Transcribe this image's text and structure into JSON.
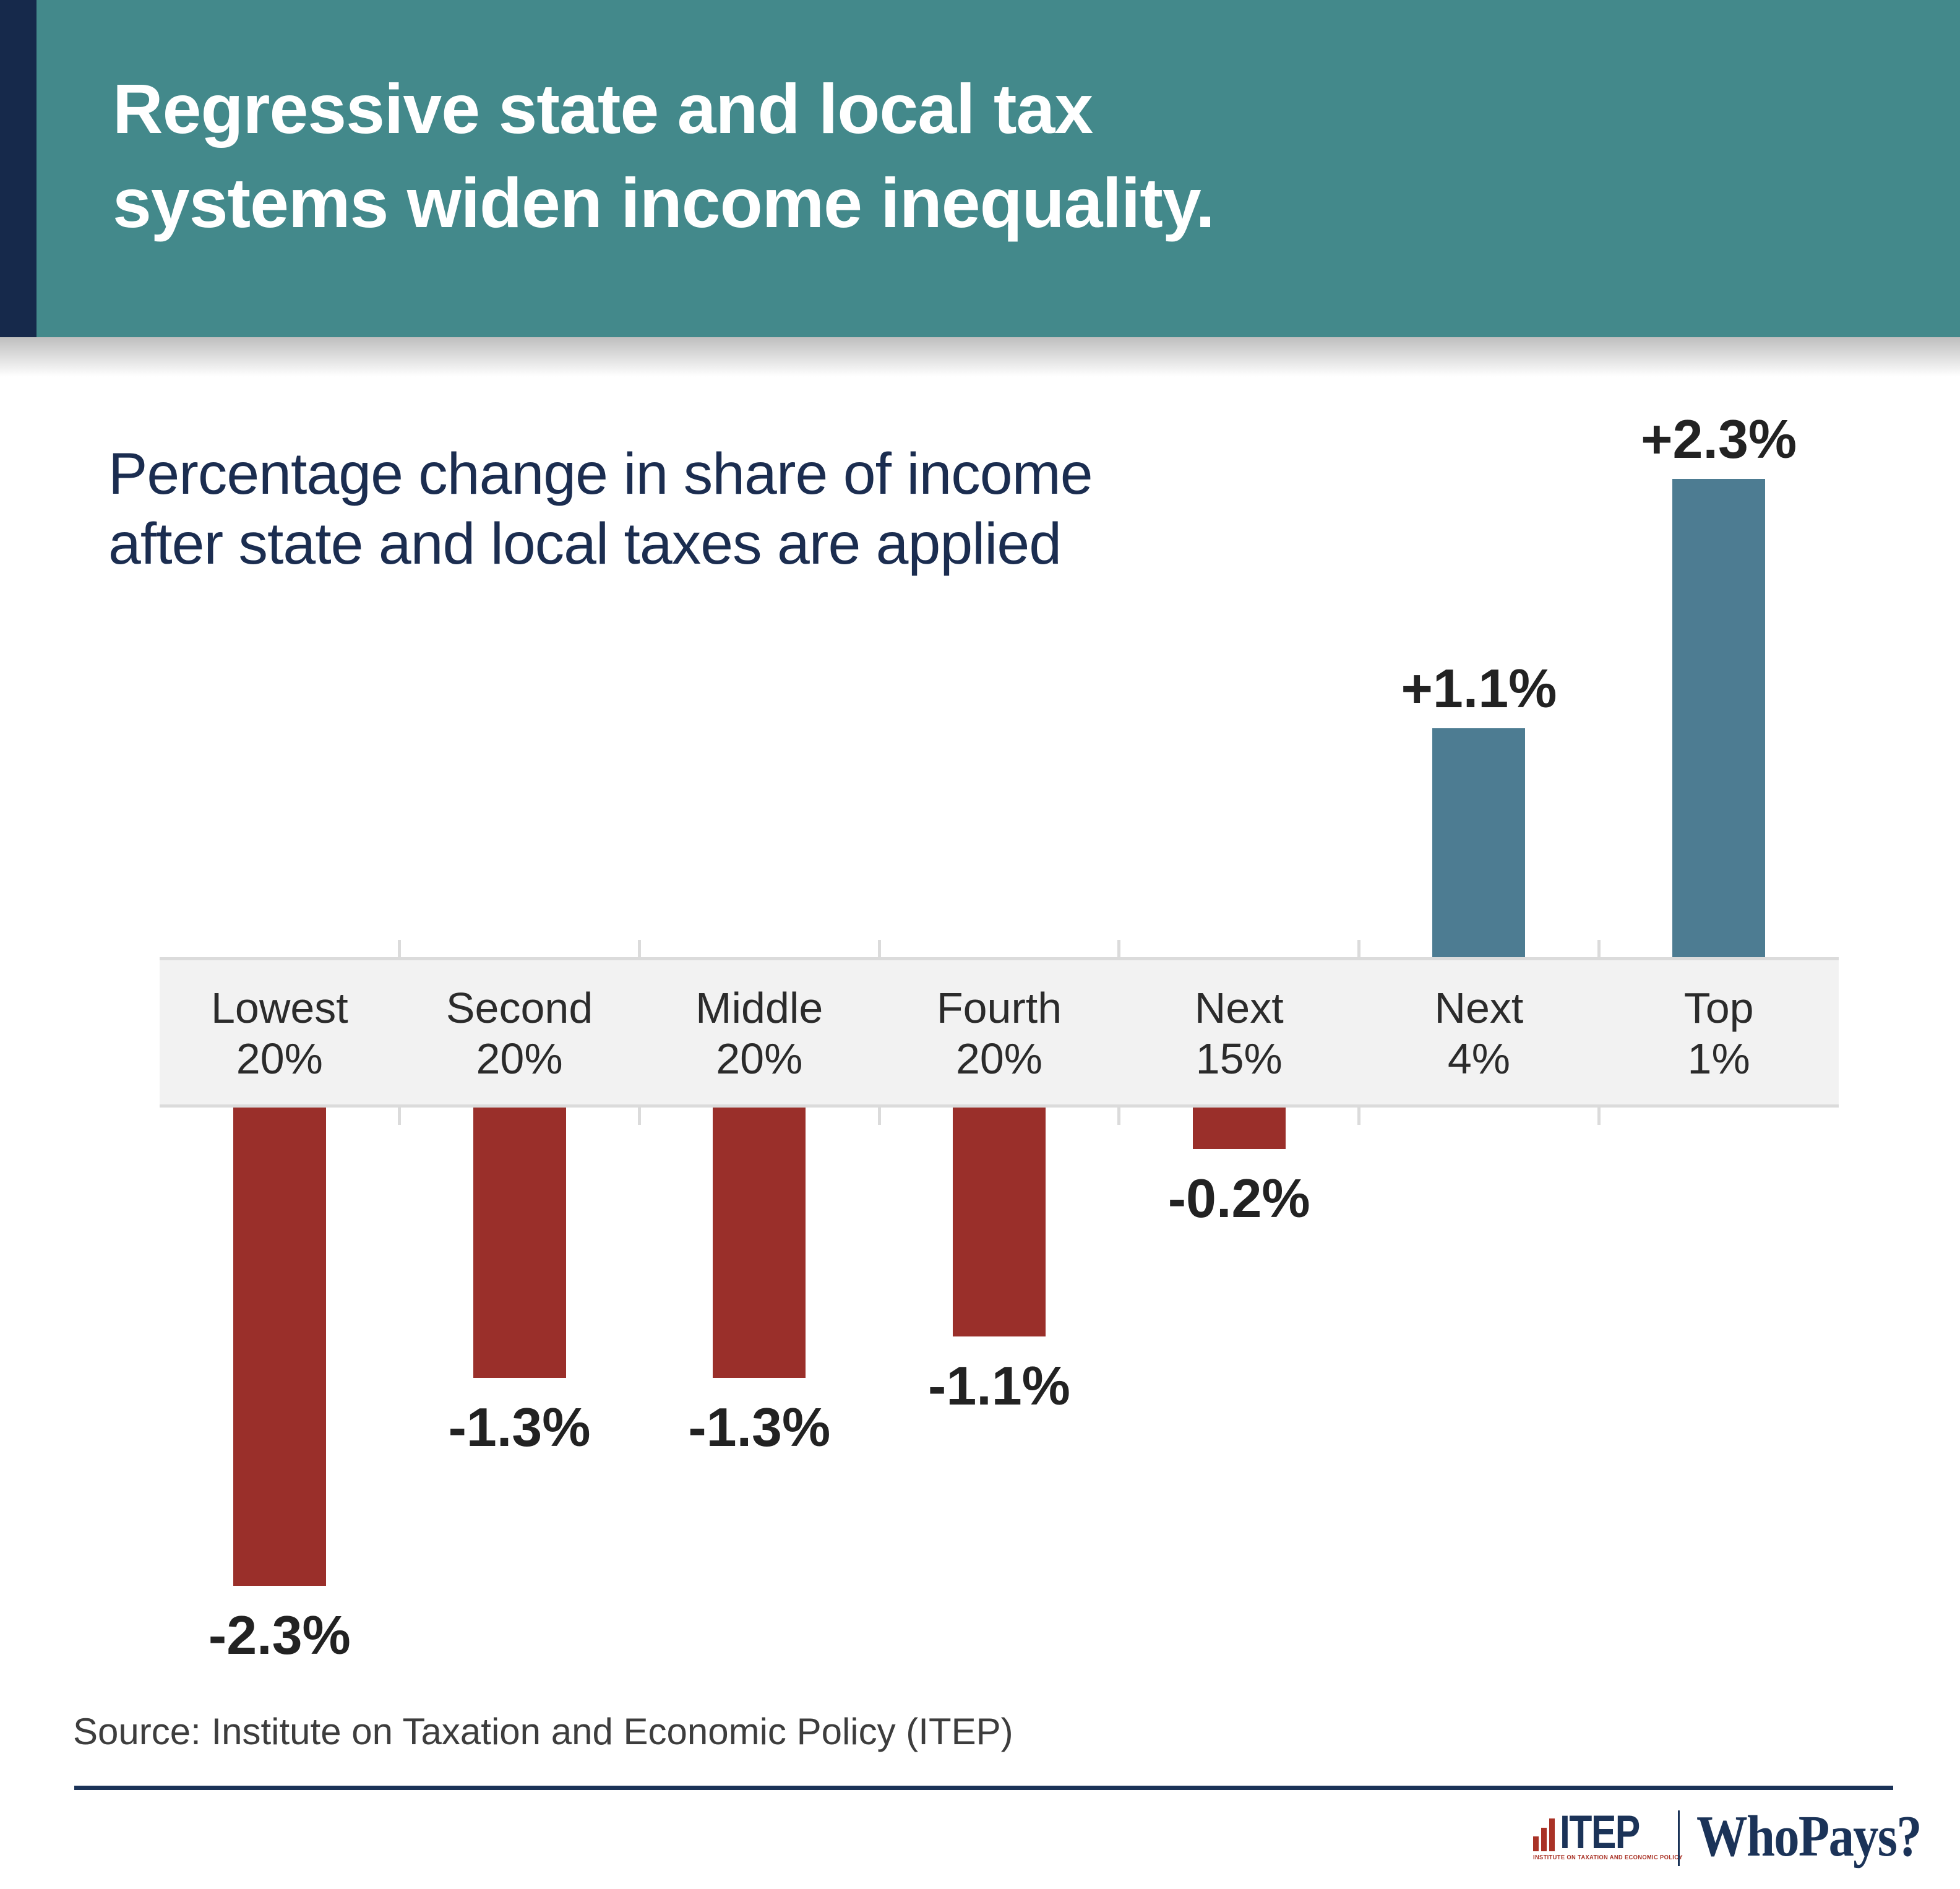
{
  "header": {
    "title_line1": "Regressive state and local tax",
    "title_line2": "systems widen income inequality."
  },
  "subtitle": {
    "line1": "Percentage change in share of income",
    "line2": "after state and local taxes are applied"
  },
  "chart_data": {
    "type": "bar",
    "title": "Percentage change in share of income after state and local taxes are applied",
    "categories": [
      [
        "Lowest",
        "20%"
      ],
      [
        "Second",
        "20%"
      ],
      [
        "Middle",
        "20%"
      ],
      [
        "Fourth",
        "20%"
      ],
      [
        "Next",
        "15%"
      ],
      [
        "Next",
        "4%"
      ],
      [
        "Top",
        "1%"
      ]
    ],
    "values": [
      -2.3,
      -1.3,
      -1.3,
      -1.1,
      -0.2,
      1.1,
      2.3
    ],
    "value_labels": [
      "-2.3%",
      "-1.3%",
      "-1.3%",
      "-1.1%",
      "-0.2%",
      "+1.1%",
      "+2.3%"
    ],
    "positive_color": "#4D7C92",
    "negative_color": "#9A2F2A",
    "ylim": [
      -2.8,
      2.8
    ],
    "xlabel": "",
    "ylabel": "",
    "legend": "none",
    "grid": "category boundary ticks only, zero axis drawn as gray label band"
  },
  "source": {
    "text": "Source: Institute on Taxation and Economic Policy (ITEP)"
  },
  "footer": {
    "itep_logo": {
      "wordmark": "ITEP",
      "caption": "INSTITUTE ON TAXATION AND ECONOMIC POLICY"
    },
    "whopays_logo": {
      "text": "WhoPays?"
    }
  },
  "colors": {
    "header_teal": "#43898B",
    "accent_navy": "#16294B",
    "title_white": "#FFFFFF",
    "subtitle_navy": "#1B2D50",
    "bar_negative_red": "#9A2F2A",
    "bar_positive_blue": "#4D7C92",
    "band_gray": "#F2F2F2",
    "band_edge_gray": "#DBDBDB",
    "value_label_dark": "#222222",
    "source_gray": "#3D3D3D",
    "footer_navy": "#1B3358",
    "logo_red": "#A93226"
  }
}
